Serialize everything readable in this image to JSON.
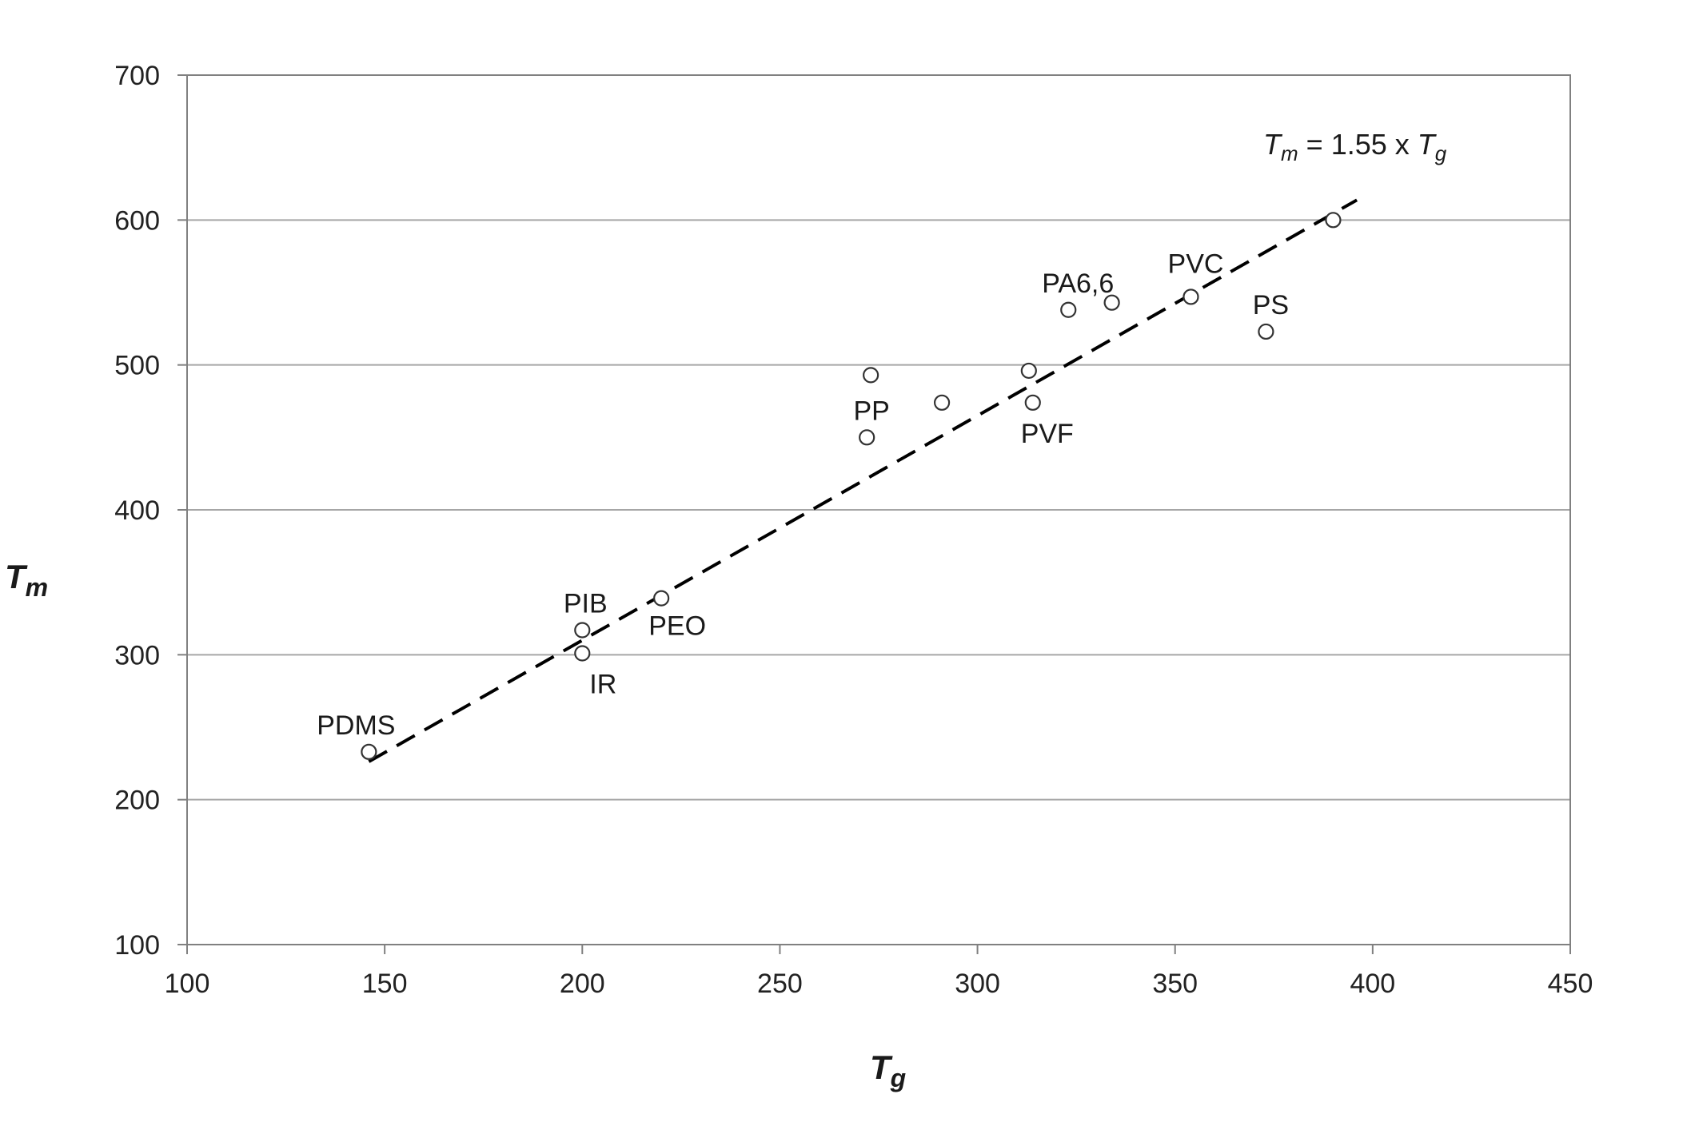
{
  "chart_data": {
    "type": "scatter",
    "xlabel": {
      "base": "T",
      "sub": "g"
    },
    "ylabel": {
      "base": "T",
      "sub": "m"
    },
    "xlim": [
      100,
      450
    ],
    "ylim": [
      100,
      700
    ],
    "xticks": [
      100,
      150,
      200,
      250,
      300,
      350,
      400,
      450
    ],
    "yticks": [
      100,
      200,
      300,
      400,
      500,
      600,
      700
    ],
    "grid": "horizontal",
    "points": [
      {
        "x": 146,
        "y": 233,
        "label": "PDMS"
      },
      {
        "x": 200,
        "y": 317,
        "label": "PIB"
      },
      {
        "x": 200,
        "y": 301,
        "label": "IR"
      },
      {
        "x": 220,
        "y": 339,
        "label": "PEO"
      },
      {
        "x": 272,
        "y": 450,
        "label": "PP"
      },
      {
        "x": 273,
        "y": 493,
        "label": ""
      },
      {
        "x": 291,
        "y": 474,
        "label": ""
      },
      {
        "x": 313,
        "y": 496,
        "label": ""
      },
      {
        "x": 314,
        "y": 474,
        "label": "PVF"
      },
      {
        "x": 323,
        "y": 538,
        "label": "PA6,6"
      },
      {
        "x": 334,
        "y": 543,
        "label": ""
      },
      {
        "x": 354,
        "y": 547,
        "label": "PVC"
      },
      {
        "x": 373,
        "y": 523,
        "label": "PS"
      },
      {
        "x": 390,
        "y": 600,
        "label": ""
      }
    ],
    "fit_line": {
      "slope": 1.55,
      "x_range": [
        146,
        396
      ],
      "style": "dashed",
      "equation": {
        "lhs_base": "T",
        "lhs_sub": "m",
        "middle": " = 1.55 x ",
        "rhs_base": "T",
        "rhs_sub": "g"
      }
    },
    "colors": {
      "axis": "#808080",
      "grid": "#a6a6a6",
      "marker": "#333333",
      "line": "#000000"
    }
  }
}
